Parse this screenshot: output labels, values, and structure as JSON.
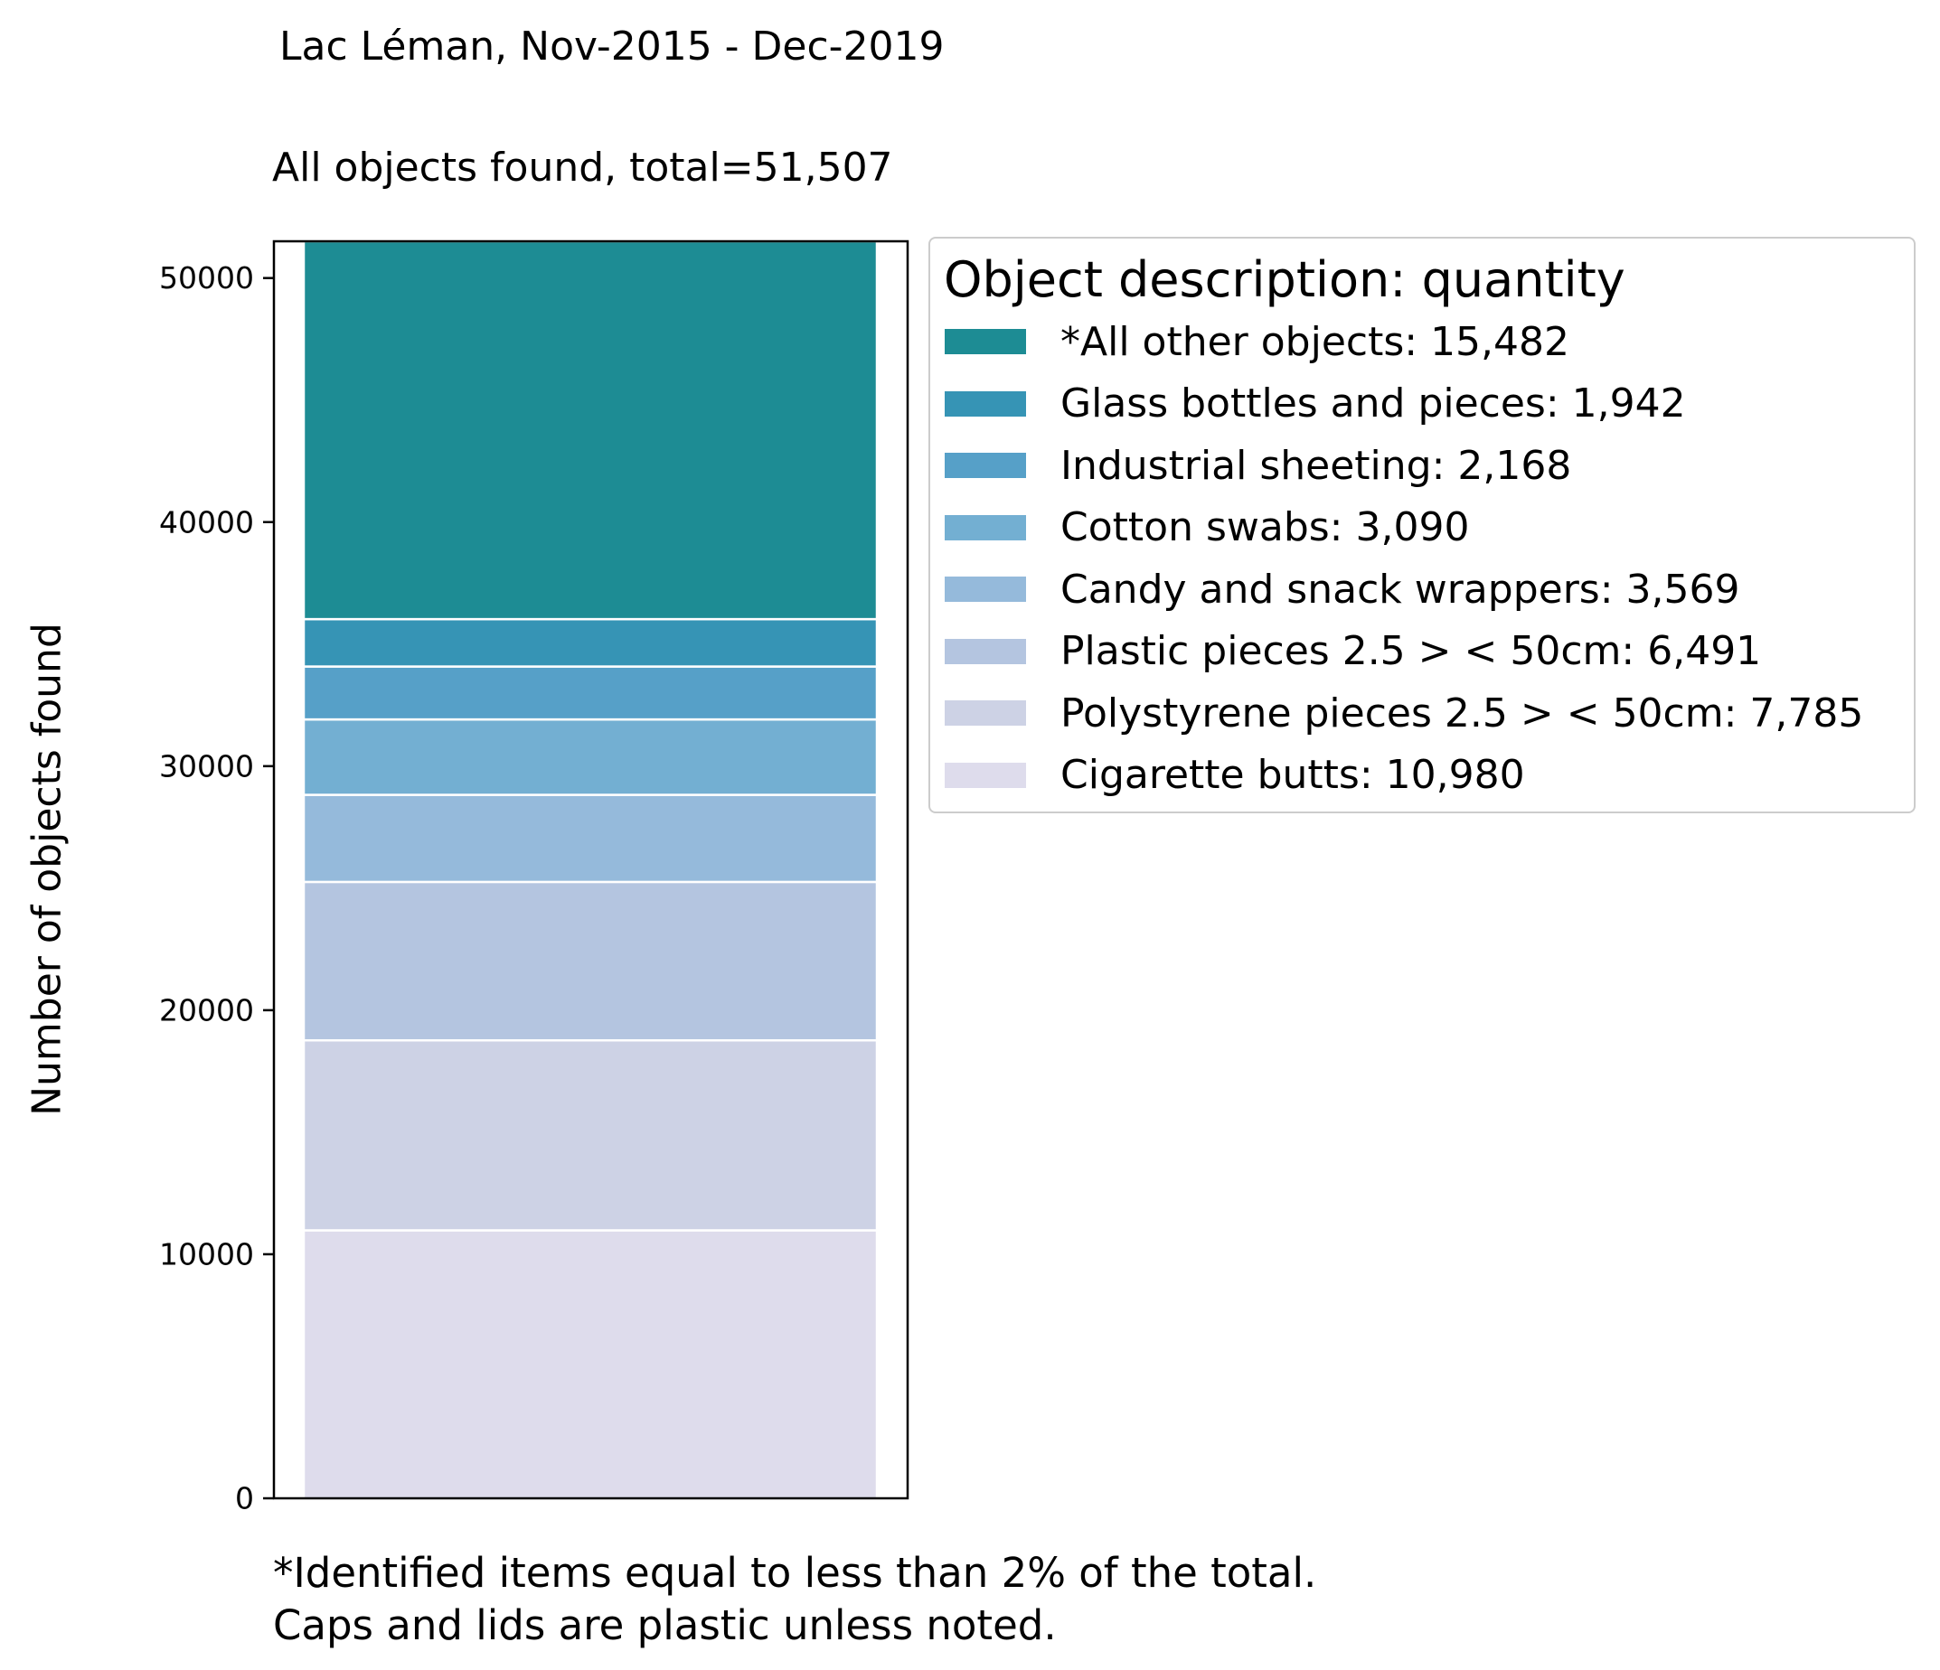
{
  "suptitle": "Lac Léman, Nov-2015 - Dec-2019",
  "footnote": {
    "line1": "*Identified items equal to less than 2% of the total.",
    "line2": "Caps and lids are plastic unless noted."
  },
  "chart_data": {
    "type": "bar",
    "stacked": true,
    "title": "All objects found,  total=51,507",
    "xlabel": "",
    "ylabel": "Number of objects found",
    "ylim": [
      0,
      51507
    ],
    "yticks": [
      0,
      10000,
      20000,
      30000,
      40000,
      50000
    ],
    "ytick_labels": [
      "0",
      "10000",
      "20000",
      "30000",
      "40000",
      "50000"
    ],
    "grid": false,
    "legend_title": "Object description: quantity",
    "legend_position": "outside-right-top",
    "series": [
      {
        "name": "Cigarette butts: 10,980",
        "value": 10980,
        "color": "#dedcec"
      },
      {
        "name": "Polystyrene pieces 2.5 > < 50cm: 7,785",
        "value": 7785,
        "color": "#cdd2e5"
      },
      {
        "name": "Plastic pieces 2.5 > < 50cm: 6,491",
        "value": 6491,
        "color": "#b4c5e0"
      },
      {
        "name": "Candy and snack wrappers: 3,569",
        "value": 3569,
        "color": "#95badb"
      },
      {
        "name": "Cotton swabs: 3,090",
        "value": 3090,
        "color": "#73afd2"
      },
      {
        "name": "Industrial sheeting: 2,168",
        "value": 2168,
        "color": "#56a0c8"
      },
      {
        "name": "Glass bottles and pieces: 1,942",
        "value": 1942,
        "color": "#3694b5"
      },
      {
        "name": "*All other objects: 15,482",
        "value": 15482,
        "color": "#1d8c94"
      }
    ]
  }
}
